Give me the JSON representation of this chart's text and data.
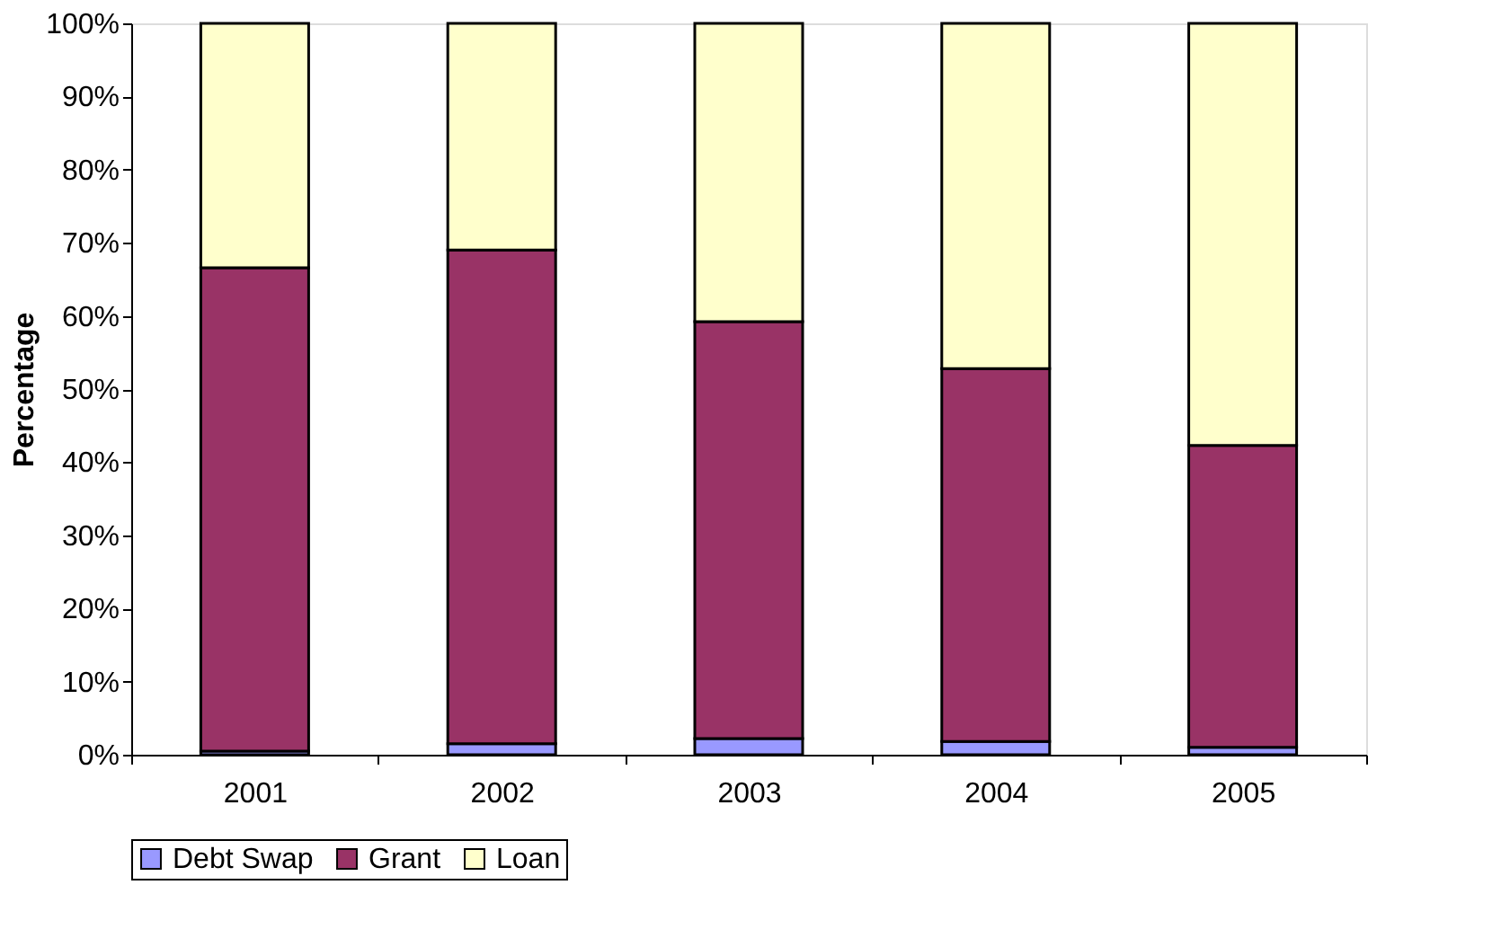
{
  "chart_data": {
    "type": "bar",
    "stacked": true,
    "ylabel": "Percentage",
    "categories": [
      "2001",
      "2002",
      "2003",
      "2004",
      "2005"
    ],
    "series": [
      {
        "name": "Debt Swap",
        "color": "#9999ff",
        "values": [
          0.5,
          1.5,
          2.2,
          1.8,
          1.0
        ]
      },
      {
        "name": "Grant",
        "color": "#993366",
        "values": [
          66.1,
          67.5,
          57.0,
          51.0,
          41.3
        ]
      },
      {
        "name": "Loan",
        "color": "#ffffcc",
        "values": [
          33.4,
          31.0,
          40.8,
          47.2,
          57.7
        ]
      }
    ],
    "ylim": [
      0,
      100
    ],
    "yticks": [
      {
        "value": 0,
        "label": "0%"
      },
      {
        "value": 10,
        "label": "10%"
      },
      {
        "value": 20,
        "label": "20%"
      },
      {
        "value": 30,
        "label": "30%"
      },
      {
        "value": 40,
        "label": "40%"
      },
      {
        "value": 50,
        "label": "50%"
      },
      {
        "value": 60,
        "label": "60%"
      },
      {
        "value": 70,
        "label": "70%"
      },
      {
        "value": 80,
        "label": "80%"
      },
      {
        "value": 90,
        "label": "90%"
      },
      {
        "value": 100,
        "label": "100%"
      }
    ],
    "grid": false,
    "legend": "bottom"
  }
}
